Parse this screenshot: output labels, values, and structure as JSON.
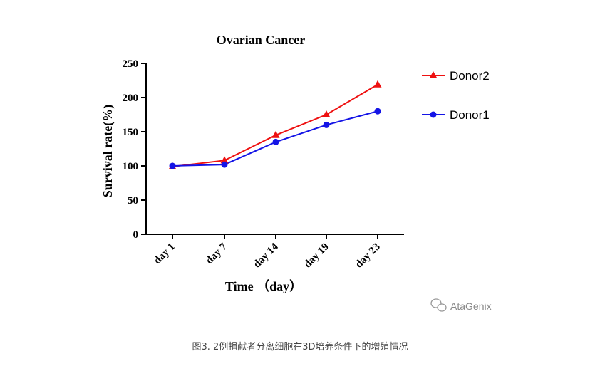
{
  "chart_data": {
    "type": "line",
    "title": "Ovarian Cancer",
    "xlabel": "Time （day）",
    "ylabel": "Survival rate(%)",
    "categories": [
      "day 1",
      "day 7",
      "day 14",
      "day 19",
      "day 23"
    ],
    "yticks": [
      0,
      50,
      100,
      150,
      200,
      250
    ],
    "ylim": [
      0,
      250
    ],
    "grid": false,
    "legend_position": "right",
    "series": [
      {
        "name": "Donor2",
        "color": "#ee1111",
        "marker": "triangle",
        "values": [
          99,
          108,
          145,
          175,
          219
        ]
      },
      {
        "name": "Donor1",
        "color": "#1414e6",
        "marker": "circle",
        "values": [
          100,
          102,
          135,
          160,
          180
        ]
      }
    ]
  },
  "watermark": {
    "text": "AtaGenix",
    "icon": "wechat-icon"
  },
  "caption": "图3. 2例捐献者分离细胞在3D培养条件下的增殖情况"
}
